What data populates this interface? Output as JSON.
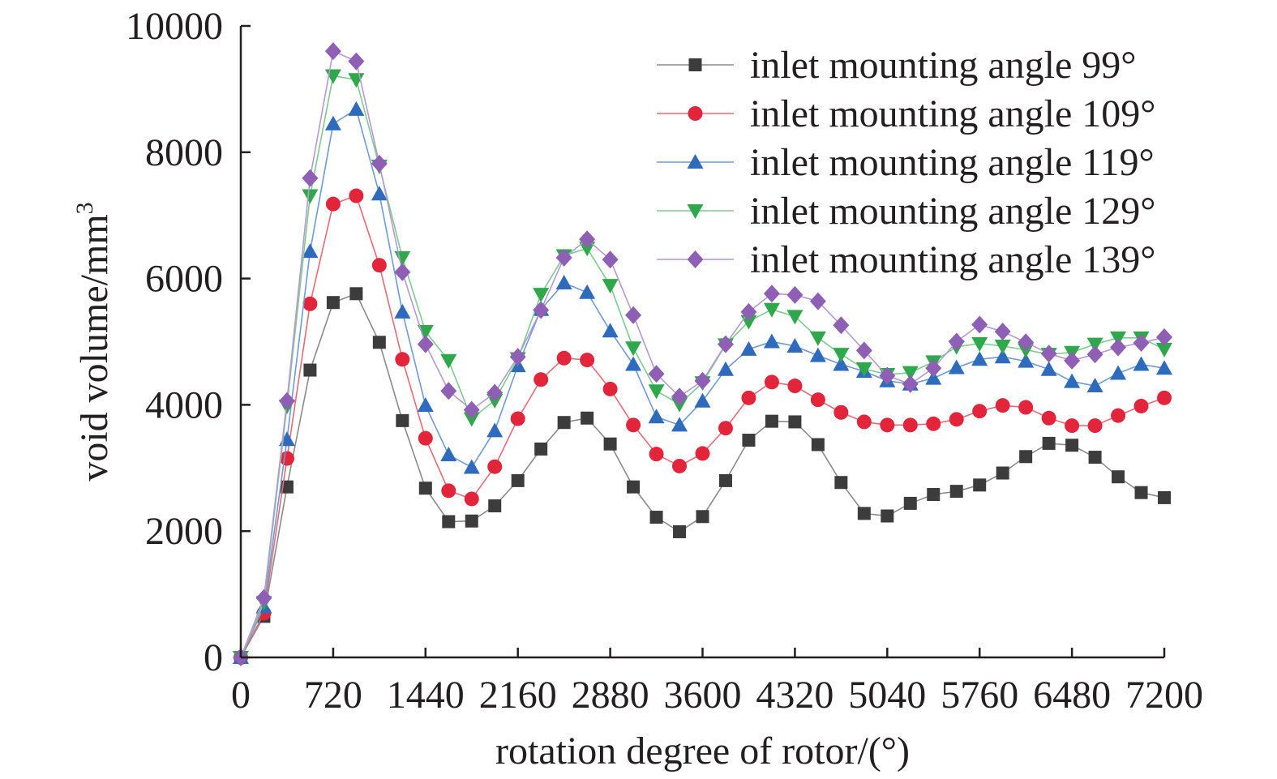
{
  "chart_data": {
    "type": "line",
    "title": "",
    "xlabel": "rotation degree of rotor/(°)",
    "ylabel": "void volume/mm",
    "ylabel_superscript": "3",
    "xlim": [
      0,
      7200
    ],
    "ylim": [
      0,
      10000
    ],
    "x_ticks": [
      0,
      720,
      1440,
      2160,
      2880,
      3600,
      4320,
      5040,
      5760,
      6480,
      7200
    ],
    "x_tick_labels": [
      "0",
      "720",
      "1440",
      "2160",
      "2880",
      "3600",
      "4320",
      "5040",
      "5760",
      "6480",
      "7200"
    ],
    "y_ticks": [
      0,
      2000,
      4000,
      6000,
      8000,
      10000
    ],
    "y_tick_labels": [
      "0",
      "2000",
      "4000",
      "6000",
      "8000",
      "10000"
    ],
    "grid": false,
    "legend_position": "top-right",
    "x": [
      0,
      180,
      360,
      540,
      720,
      900,
      1080,
      1260,
      1440,
      1620,
      1800,
      1980,
      2160,
      2340,
      2520,
      2700,
      2880,
      3060,
      3240,
      3420,
      3600,
      3780,
      3960,
      4140,
      4320,
      4500,
      4680,
      4860,
      5040,
      5220,
      5400,
      5580,
      5760,
      5940,
      6120,
      6300,
      6480,
      6660,
      6840,
      7020,
      7200
    ],
    "series": [
      {
        "name": "inlet mounting angle 99°",
        "color": "#3c3c3c",
        "line_color": "#8a8a8a",
        "marker": "square",
        "values": [
          0,
          650,
          2700,
          4550,
          5620,
          5760,
          4990,
          3750,
          2680,
          2150,
          2160,
          2400,
          2800,
          3300,
          3720,
          3790,
          3380,
          2700,
          2220,
          1990,
          2230,
          2800,
          3440,
          3740,
          3730,
          3370,
          2770,
          2280,
          2240,
          2440,
          2580,
          2630,
          2730,
          2920,
          3180,
          3390,
          3360,
          3170,
          2860,
          2610,
          2530
        ]
      },
      {
        "name": "inlet mounting angle 109°",
        "color": "#e2253a",
        "line_color": "#e86a75",
        "marker": "circle",
        "values": [
          0,
          700,
          3150,
          5600,
          7180,
          7310,
          6210,
          4720,
          3470,
          2640,
          2510,
          3020,
          3780,
          4400,
          4740,
          4710,
          4250,
          3680,
          3220,
          3030,
          3230,
          3630,
          4110,
          4360,
          4300,
          4080,
          3880,
          3730,
          3680,
          3680,
          3700,
          3770,
          3900,
          3990,
          3960,
          3790,
          3670,
          3670,
          3830,
          3980,
          4110
        ]
      },
      {
        "name": "inlet mounting angle 119°",
        "color": "#2e6bbd",
        "line_color": "#6e9ad6",
        "marker": "triangle-up",
        "values": [
          0,
          800,
          3450,
          6430,
          8450,
          8680,
          7340,
          5470,
          3990,
          3210,
          3010,
          3590,
          4620,
          5510,
          5930,
          5780,
          5170,
          4640,
          3810,
          3680,
          4060,
          4560,
          4880,
          5000,
          4930,
          4780,
          4640,
          4530,
          4380,
          4330,
          4420,
          4590,
          4720,
          4760,
          4690,
          4560,
          4370,
          4300,
          4500,
          4640,
          4580
        ]
      },
      {
        "name": "inlet mounting angle 129°",
        "color": "#2ea84a",
        "line_color": "#7dcc8d",
        "marker": "triangle-down",
        "values": [
          0,
          870,
          3980,
          7310,
          9210,
          9150,
          7780,
          6330,
          5160,
          4700,
          3780,
          4070,
          4730,
          5750,
          6360,
          6480,
          5890,
          4900,
          4220,
          4010,
          4350,
          4950,
          5320,
          5510,
          5400,
          5060,
          4800,
          4570,
          4480,
          4510,
          4680,
          4920,
          4970,
          4930,
          4870,
          4800,
          4830,
          4960,
          5060,
          5060,
          4880
        ]
      },
      {
        "name": "inlet mounting angle 139°",
        "color": "#8e5fb5",
        "line_color": "#b698d3",
        "marker": "diamond",
        "values": [
          0,
          940,
          4060,
          7590,
          9600,
          9440,
          7820,
          6100,
          4960,
          4220,
          3920,
          4190,
          4760,
          5500,
          6330,
          6620,
          6300,
          5420,
          4490,
          4130,
          4380,
          4960,
          5470,
          5760,
          5740,
          5640,
          5260,
          4860,
          4460,
          4330,
          4580,
          5000,
          5270,
          5160,
          4990,
          4810,
          4700,
          4800,
          4910,
          4980,
          5070
        ]
      }
    ]
  }
}
